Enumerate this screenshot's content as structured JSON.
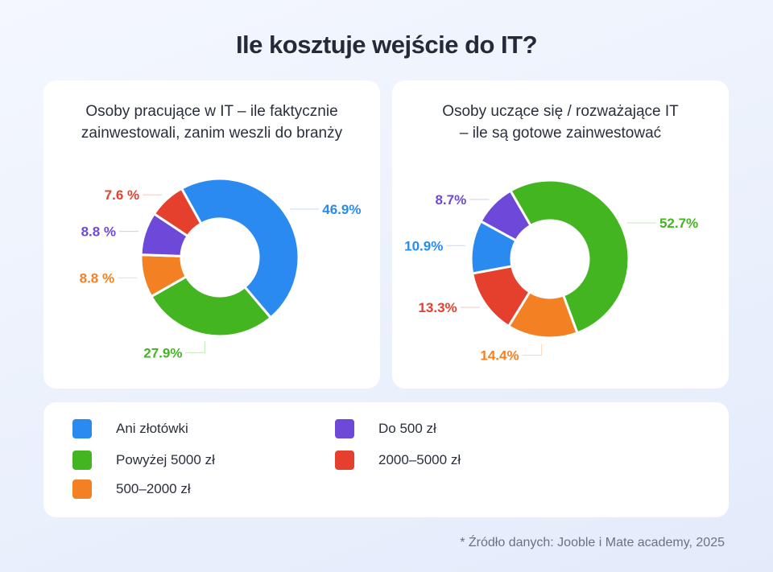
{
  "title": "Ile kosztuje wejście do IT?",
  "categories": [
    "Ani złotówki",
    "Powyżej 5000 zł",
    "500–2000 zł",
    "Do 500 zł",
    "2000–5000 zł"
  ],
  "colors": {
    "Ani złotówki": "#2b8af0",
    "Powyżej 5000 zł": "#43b521",
    "500–2000 zł": "#f38124",
    "Do 500 zł": "#6e48d8",
    "2000–5000 zł": "#e5402d"
  },
  "chart_data": [
    {
      "type": "pie",
      "donut": true,
      "title": "Osoby pracujące w IT – ile faktycznie zainwestowali, zanim weszli do branży",
      "slices": [
        {
          "category": "Ani złotówki",
          "value": 46.9,
          "label": "46.9%"
        },
        {
          "category": "Powyżej 5000 zł",
          "value": 27.9,
          "label": "27.9%"
        },
        {
          "category": "500–2000 zł",
          "value": 8.8,
          "label": "8.8 %"
        },
        {
          "category": "Do 500 zł",
          "value": 8.8,
          "label": "8.8 %"
        },
        {
          "category": "2000–5000 zł",
          "value": 7.6,
          "label": "7.6 %"
        }
      ]
    },
    {
      "type": "pie",
      "donut": true,
      "title": "Osoby uczące się / rozważające IT – ile są gotowe zainwestować",
      "slices": [
        {
          "category": "Powyżej 5000 zł",
          "value": 52.7,
          "label": "52.7%"
        },
        {
          "category": "500–2000 zł",
          "value": 14.4,
          "label": "14.4%"
        },
        {
          "category": "2000–5000 zł",
          "value": 13.3,
          "label": "13.3%"
        },
        {
          "category": "Ani złotówki",
          "value": 10.9,
          "label": "10.9%"
        },
        {
          "category": "Do 500 zł",
          "value": 8.7,
          "label": "8.7%"
        }
      ]
    }
  ],
  "left_title_lines": [
    "Osoby pracujące w IT – ile faktycznie",
    "zainwestowali, zanim weszli do branży"
  ],
  "right_title_lines": [
    "Osoby uczące się / rozważające IT",
    "– ile są gotowe zainwestować"
  ],
  "legend": [
    "Ani złotówki",
    "Do 500 zł",
    "Powyżej 5000 zł",
    "2000–5000 zł",
    "500–2000 zł"
  ],
  "source": "*  Źródło danych: Jooble i Mate academy, 2025"
}
